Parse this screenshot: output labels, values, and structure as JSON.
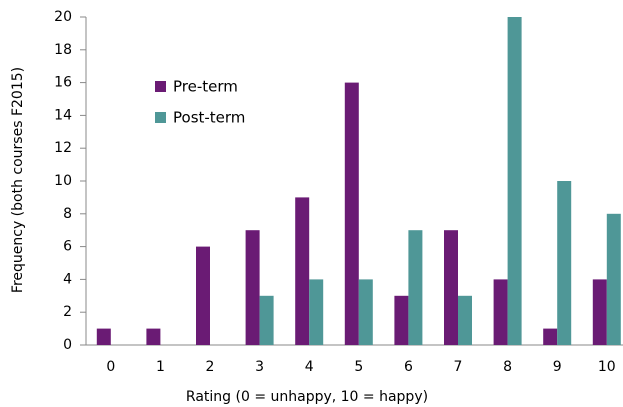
{
  "chart_data": {
    "type": "bar",
    "x_label": "Rating (0 = unhappy, 10 = happy)",
    "y_label": "Frequency (both courses F2015)",
    "categories": [
      "0",
      "1",
      "2",
      "3",
      "4",
      "5",
      "6",
      "7",
      "8",
      "9",
      "10"
    ],
    "series": [
      {
        "name": "Pre-term",
        "color": "#6a1b74",
        "values": [
          1,
          1,
          6,
          7,
          9,
          16,
          3,
          7,
          4,
          1,
          4
        ]
      },
      {
        "name": "Post-term",
        "color": "#4f9797",
        "values": [
          0,
          0,
          0,
          3,
          4,
          4,
          7,
          3,
          20,
          10,
          8
        ]
      }
    ],
    "ylim": [
      0,
      20
    ],
    "yticks": [
      0,
      2,
      4,
      6,
      8,
      10,
      12,
      14,
      16,
      18,
      20
    ],
    "grid": false,
    "legend": "upper left"
  }
}
